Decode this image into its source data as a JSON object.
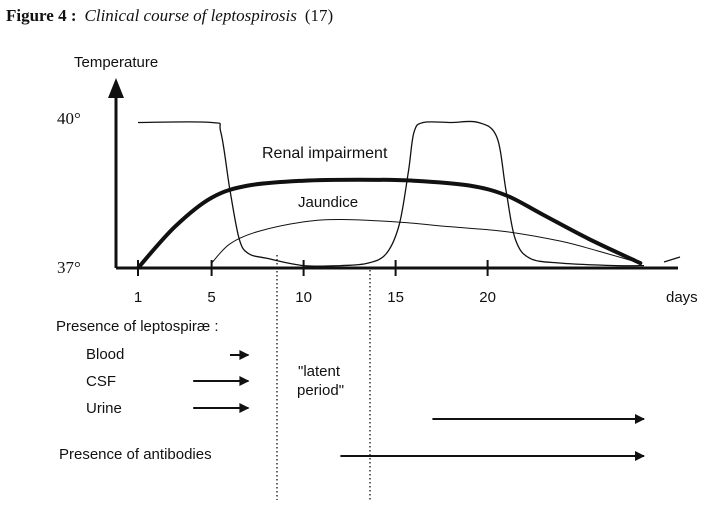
{
  "figure": {
    "label": "Figure 4 :",
    "title": "Clinical course of leptospirosis",
    "ref": "(17)"
  },
  "chart_data": {
    "type": "line",
    "ylabel": "Temperature",
    "xlabel": "days",
    "y_ticks": [
      "40°",
      "37°"
    ],
    "x_ticks": [
      1,
      5,
      10,
      15,
      20
    ],
    "series": [
      {
        "name": "Temperature",
        "points": [
          [
            1,
            40
          ],
          [
            5,
            40
          ],
          [
            5.5,
            39.8
          ],
          [
            6,
            38.6
          ],
          [
            6.5,
            37.6
          ],
          [
            7,
            37.3
          ],
          [
            8,
            37.2
          ],
          [
            10,
            37.05
          ],
          [
            12,
            37.05
          ],
          [
            13.5,
            37.1
          ],
          [
            14.5,
            37.3
          ],
          [
            15.2,
            37.9
          ],
          [
            15.7,
            39.0
          ],
          [
            16,
            39.8
          ],
          [
            16.5,
            40
          ],
          [
            18,
            40
          ],
          [
            19.5,
            40
          ],
          [
            20.5,
            39.7
          ],
          [
            21,
            38.6
          ],
          [
            21.5,
            37.6
          ],
          [
            22.3,
            37.2
          ],
          [
            24,
            37.1
          ],
          [
            27,
            37.05
          ],
          [
            28.5,
            37.05
          ]
        ]
      },
      {
        "name": "Renal impairment",
        "points": [
          [
            1,
            37
          ],
          [
            3,
            37.85
          ],
          [
            5,
            38.45
          ],
          [
            7,
            38.7
          ],
          [
            10,
            38.8
          ],
          [
            13,
            38.82
          ],
          [
            16,
            38.8
          ],
          [
            19,
            38.7
          ],
          [
            21,
            38.5
          ],
          [
            23,
            38.1
          ],
          [
            25.5,
            37.6
          ],
          [
            28.3,
            37.1
          ]
        ]
      },
      {
        "name": "Jaundice",
        "points": [
          [
            5,
            37.1
          ],
          [
            6,
            37.5
          ],
          [
            7.5,
            37.75
          ],
          [
            10,
            37.95
          ],
          [
            12,
            38.0
          ],
          [
            15,
            37.95
          ],
          [
            18,
            37.85
          ],
          [
            21,
            37.75
          ],
          [
            24,
            37.55
          ],
          [
            26,
            37.35
          ],
          [
            28.3,
            37.1
          ]
        ]
      }
    ]
  },
  "presence": {
    "heading": "Presence of leptospiræ :",
    "rows": [
      {
        "label": "Blood",
        "from_day": 6,
        "to_day": 7
      },
      {
        "label": "CSF",
        "from_day": 4,
        "to_day": 7
      },
      {
        "label": "Urine",
        "from_day": 4,
        "to_day": 7
      },
      {
        "label": "",
        "from_day": 17,
        "to_day": 28.5
      }
    ],
    "latent_label": [
      "\"latent",
      "period\""
    ],
    "antibodies": {
      "label": "Presence of antibodies",
      "from_day": 12,
      "to_day": 28.5
    }
  }
}
